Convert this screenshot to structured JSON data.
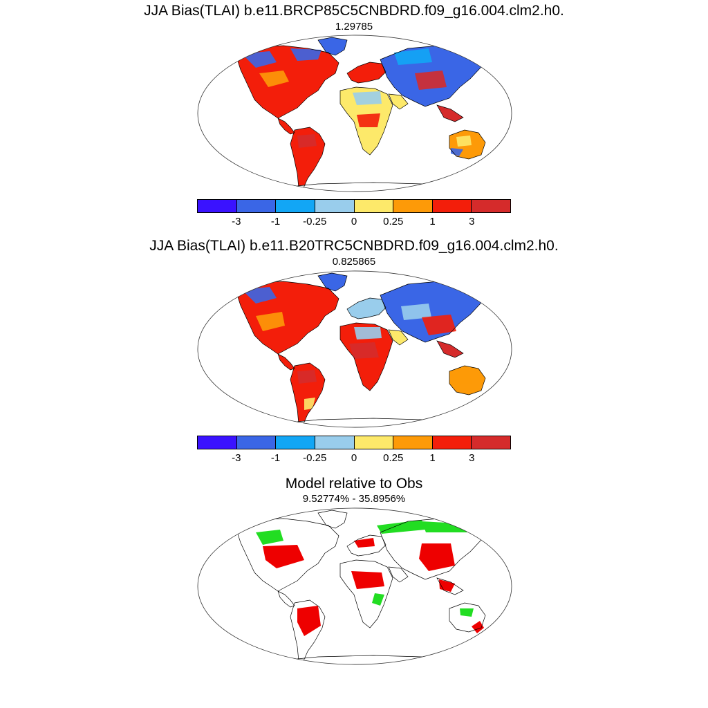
{
  "panels": [
    {
      "title": "JJA Bias(TLAI) b.e11.BRCP85C5CNBDRD.f09_g16.004.clm2.h0.",
      "subtitle": "1.29785",
      "type": "bias"
    },
    {
      "title": "JJA Bias(TLAI) b.e11.B20TRC5CNBDRD.f09_g16.004.clm2.h0.",
      "subtitle": "0.825865",
      "type": "bias"
    },
    {
      "title": "Model relative to Obs",
      "subtitle": "9.52774% - 35.8956%",
      "type": "relative"
    }
  ],
  "colorbar": {
    "colors": [
      "#3a12ff",
      "#3a66e6",
      "#12a6f5",
      "#99cdec",
      "#fde96a",
      "#fd9a08",
      "#f31e0a",
      "#d52b2b"
    ],
    "labels": [
      "-3",
      "-1",
      "-0.25",
      "0",
      "0.25",
      "1",
      "3"
    ]
  },
  "relative_colors": {
    "worse": "#ee0000",
    "better": "#22dd22"
  }
}
